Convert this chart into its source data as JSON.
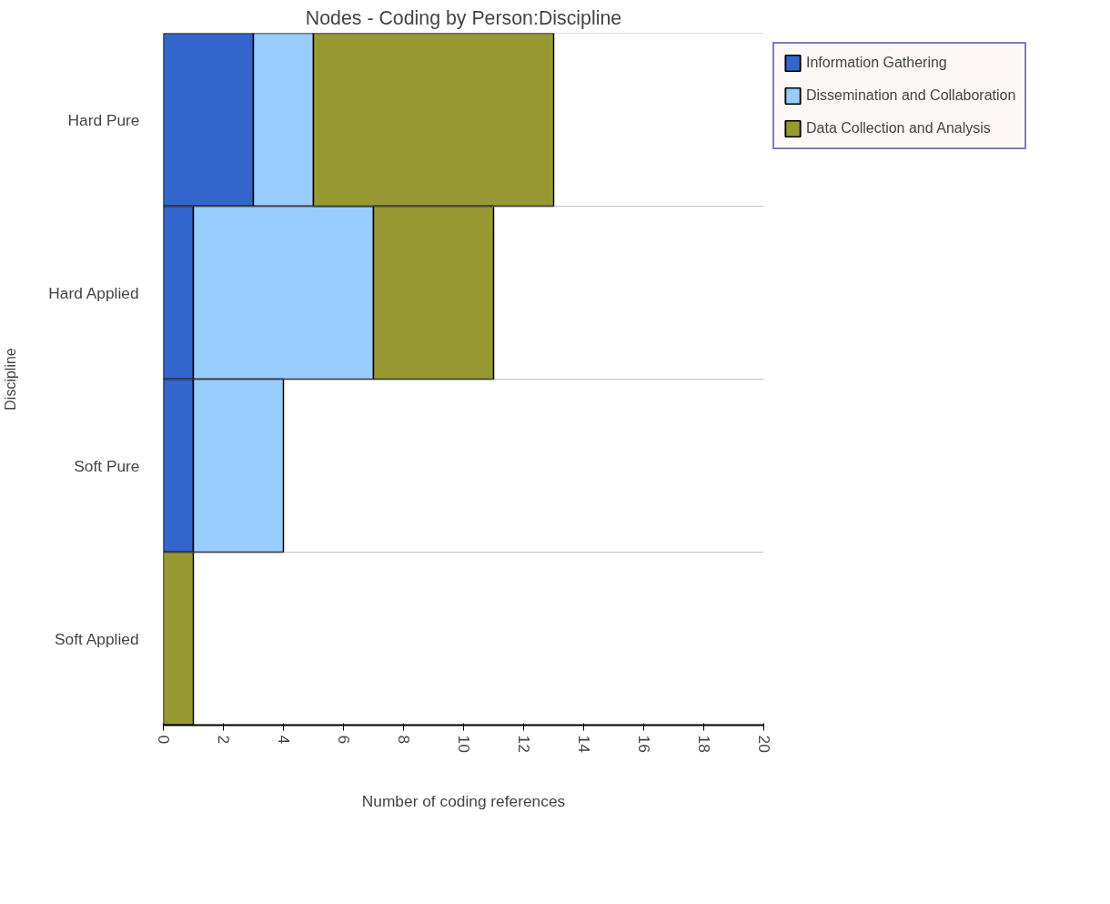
{
  "chart_data": {
    "type": "bar",
    "orientation": "horizontal",
    "stacked": true,
    "title": "Nodes - Coding by Person:Discipline",
    "xlabel": "Number of coding references",
    "ylabel": "Discipline",
    "categories": [
      "Hard Pure",
      "Hard Applied",
      "Soft Pure",
      "Soft Applied"
    ],
    "series": [
      {
        "name": "Information Gathering",
        "color": "#3366cc",
        "values": [
          3,
          1,
          1,
          null
        ]
      },
      {
        "name": "Dissemination and Collaboration",
        "color": "#99ccff",
        "values": [
          2,
          6,
          3,
          null
        ]
      },
      {
        "name": "Data Collection and Analysis",
        "color": "#999933",
        "values": [
          8,
          4,
          null,
          1
        ]
      }
    ],
    "xlim": [
      0,
      20
    ],
    "xticks": [
      0,
      2,
      4,
      6,
      8,
      10,
      12,
      14,
      16,
      18,
      20
    ],
    "grid": "y",
    "legend": "right"
  }
}
